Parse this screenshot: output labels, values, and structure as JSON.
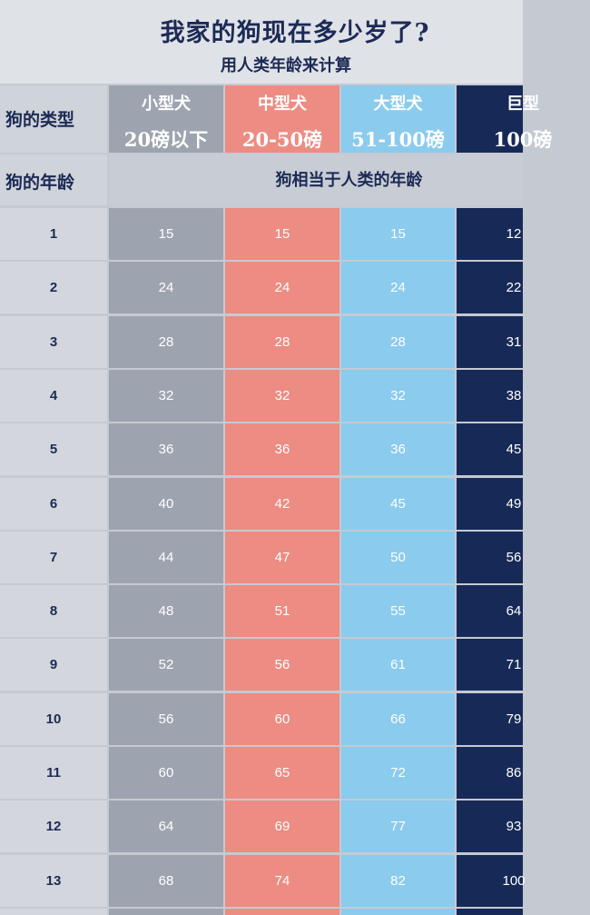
{
  "title": "我家的狗现在多少岁了?",
  "subtitle": "用人类年龄来计算",
  "row_label_type": "狗的类型",
  "row_label_age": "狗的年龄",
  "equivalent_label": "狗相当于人类的年龄",
  "colors": {
    "small": "#9ea4af",
    "medium": "#ec8c82",
    "large": "#8bcbee",
    "giant": "#172a57"
  },
  "chart_data": {
    "type": "table",
    "title": "我家的狗现在多少岁了?",
    "subtitle": "用人类年龄来计算",
    "columns": [
      {
        "name": "小型犬",
        "weight": "20磅以下",
        "color_key": "small"
      },
      {
        "name": "中型犬",
        "weight": "20-50磅",
        "color_key": "medium"
      },
      {
        "name": "大型犬",
        "weight": "51-100磅",
        "color_key": "large"
      },
      {
        "name": "巨型",
        "weight": "100磅",
        "color_key": "giant"
      }
    ],
    "dog_ages": [
      "1",
      "2",
      "3",
      "4",
      "5",
      "6",
      "7",
      "8",
      "9",
      "10",
      "11",
      "12",
      "13"
    ],
    "human_ages": [
      [
        "15",
        "15",
        "15",
        "12"
      ],
      [
        "24",
        "24",
        "24",
        "22"
      ],
      [
        "28",
        "28",
        "28",
        "31"
      ],
      [
        "32",
        "32",
        "32",
        "38"
      ],
      [
        "36",
        "36",
        "36",
        "45"
      ],
      [
        "40",
        "42",
        "45",
        "49"
      ],
      [
        "44",
        "47",
        "50",
        "56"
      ],
      [
        "48",
        "51",
        "55",
        "64"
      ],
      [
        "52",
        "56",
        "61",
        "71"
      ],
      [
        "56",
        "60",
        "66",
        "79"
      ],
      [
        "60",
        "65",
        "72",
        "86"
      ],
      [
        "64",
        "69",
        "77",
        "93"
      ],
      [
        "68",
        "74",
        "82",
        "100"
      ]
    ]
  }
}
